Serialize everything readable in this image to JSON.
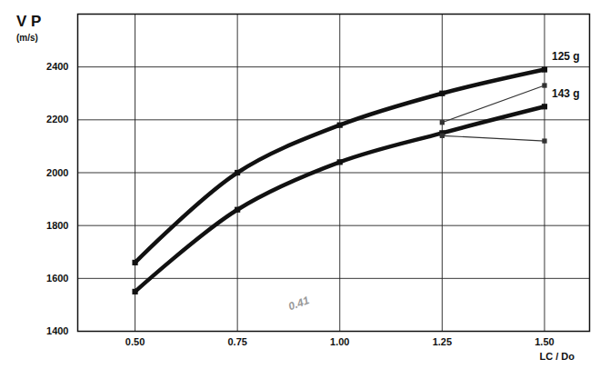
{
  "chart_data": {
    "type": "line",
    "ylabel": "V P",
    "yunit": "(m/s)",
    "xlabel": "LC / Do",
    "x": [
      0.5,
      0.75,
      1.0,
      1.25,
      1.5
    ],
    "xlim": [
      0.36,
      1.61
    ],
    "xticks": [
      {
        "value": 0.5,
        "label": "0.50"
      },
      {
        "value": 0.75,
        "label": "0.75"
      },
      {
        "value": 1.0,
        "label": "1.00"
      },
      {
        "value": 1.25,
        "label": "1.25"
      },
      {
        "value": 1.5,
        "label": "1.50"
      }
    ],
    "ylim": [
      1400,
      2600
    ],
    "yticks": [
      1400,
      1600,
      1800,
      2000,
      2200,
      2400
    ],
    "grid": true,
    "series": [
      {
        "name": "125 g",
        "color": "#111111",
        "marker": "square",
        "line_style": "thick",
        "values": [
          1660,
          2000,
          2180,
          2300,
          2390
        ]
      },
      {
        "name": "143 g",
        "color": "#111111",
        "marker": "square",
        "line_style": "thick",
        "values": [
          1550,
          1860,
          2040,
          2150,
          2250
        ]
      },
      {
        "color": "#333333",
        "marker": "square",
        "line_style": "thin",
        "values": [
          null,
          null,
          null,
          2190,
          2330
        ]
      },
      {
        "color": "#333333",
        "marker": "square",
        "line_style": "thin",
        "values": [
          null,
          null,
          null,
          2140,
          2120
        ]
      }
    ],
    "annotations": [
      {
        "text": "0.41",
        "x": 0.9,
        "y": 1505,
        "color": "#999999"
      }
    ]
  }
}
